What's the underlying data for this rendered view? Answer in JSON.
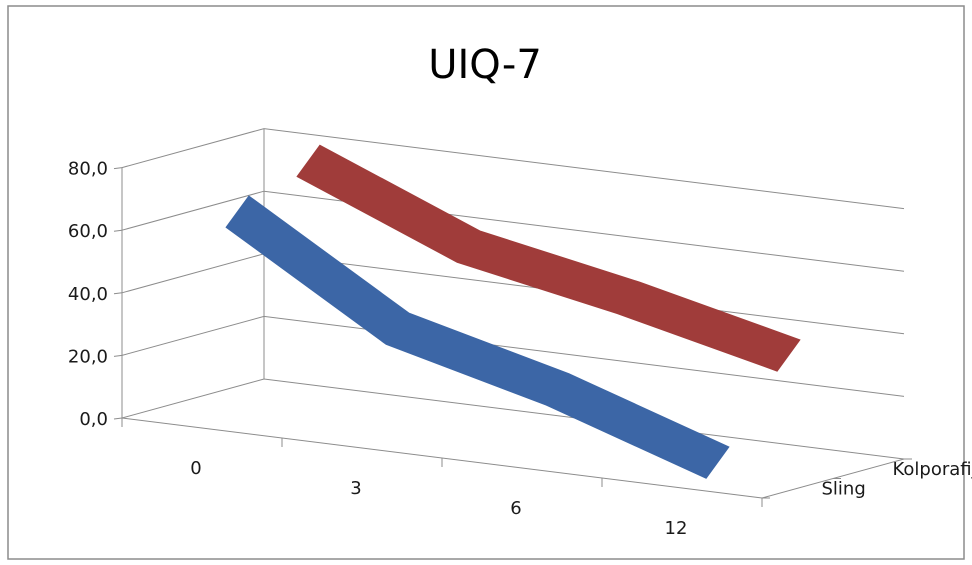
{
  "chart_data": {
    "type": "line",
    "style": "3d",
    "title": "UIQ-7",
    "categories": [
      "0",
      "3",
      "6",
      "12"
    ],
    "series": [
      {
        "name": "Sling",
        "values": [
          66,
          35,
          22,
          5
        ],
        "color": "#3c66a6"
      },
      {
        "name": "Kolporafija",
        "values": [
          76,
          55,
          45,
          33
        ],
        "color": "#a03c3a"
      }
    ],
    "y_ticks": [
      "0,0",
      "20,0",
      "40,0",
      "60,0",
      "80,0"
    ],
    "ylim": [
      0,
      80
    ],
    "grid": true
  }
}
